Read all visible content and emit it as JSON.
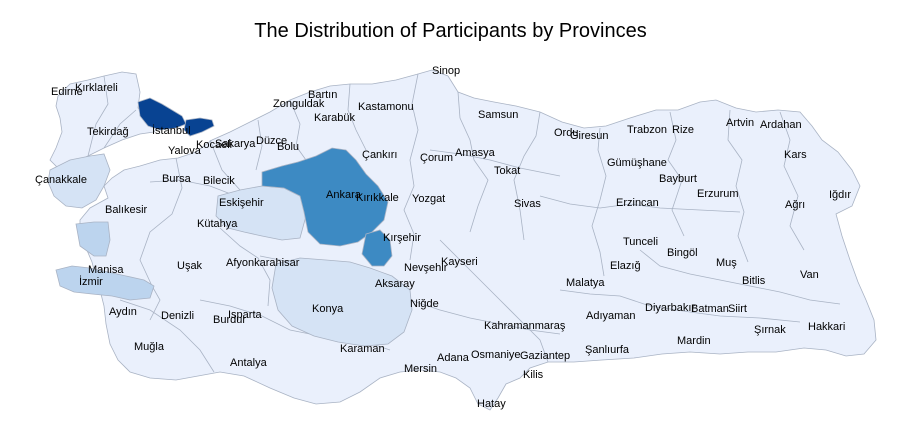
{
  "title": "The Distribution of Participants by Provinces",
  "colors": {
    "background": "#ffffff",
    "land_default": "#eaf0fc",
    "level_1": "#d5e3f5",
    "level_2": "#bcd4ee",
    "level_3": "#3d8ac3",
    "level_4": "#084392",
    "border": "#a9b3c4"
  },
  "provinces": [
    {
      "name": "Sinop",
      "shade": "default"
    },
    {
      "name": "Edirne",
      "shade": "default"
    },
    {
      "name": "Kırklareli",
      "shade": "default"
    },
    {
      "name": "Bartın",
      "shade": "default"
    },
    {
      "name": "Kastamonu",
      "shade": "default"
    },
    {
      "name": "Zonguldak",
      "shade": "default"
    },
    {
      "name": "Karabük",
      "shade": "default"
    },
    {
      "name": "Samsun",
      "shade": "default"
    },
    {
      "name": "Tekirdağ",
      "shade": "default"
    },
    {
      "name": "İstanbul",
      "shade": "level_4"
    },
    {
      "name": "Kocaeli",
      "shade": "level_4"
    },
    {
      "name": "Sakarya",
      "shade": "default"
    },
    {
      "name": "Düzce",
      "shade": "default"
    },
    {
      "name": "Bolu",
      "shade": "default"
    },
    {
      "name": "Ordu",
      "shade": "default"
    },
    {
      "name": "Giresun",
      "shade": "default"
    },
    {
      "name": "Trabzon",
      "shade": "default"
    },
    {
      "name": "Rize",
      "shade": "default"
    },
    {
      "name": "Artvin",
      "shade": "default"
    },
    {
      "name": "Ardahan",
      "shade": "default"
    },
    {
      "name": "Yalova",
      "shade": "default"
    },
    {
      "name": "Çankırı",
      "shade": "default"
    },
    {
      "name": "Çorum",
      "shade": "default"
    },
    {
      "name": "Amasya",
      "shade": "default"
    },
    {
      "name": "Gümüşhane",
      "shade": "default"
    },
    {
      "name": "Kars",
      "shade": "default"
    },
    {
      "name": "Çanakkale",
      "shade": "level_1"
    },
    {
      "name": "Bursa",
      "shade": "default"
    },
    {
      "name": "Bilecik",
      "shade": "default"
    },
    {
      "name": "Ankara",
      "shade": "level_3"
    },
    {
      "name": "Kırıkkale",
      "shade": "default"
    },
    {
      "name": "Tokat",
      "shade": "default"
    },
    {
      "name": "Bayburt",
      "shade": "default"
    },
    {
      "name": "Iğdır",
      "shade": "default"
    },
    {
      "name": "Eskişehir",
      "shade": "level_1"
    },
    {
      "name": "Erzurum",
      "shade": "default"
    },
    {
      "name": "Balıkesir",
      "shade": "default"
    },
    {
      "name": "Yozgat",
      "shade": "default"
    },
    {
      "name": "Sivas",
      "shade": "default"
    },
    {
      "name": "Erzincan",
      "shade": "default"
    },
    {
      "name": "Ağrı",
      "shade": "default"
    },
    {
      "name": "Kütahya",
      "shade": "default"
    },
    {
      "name": "Kırşehir",
      "shade": "level_3"
    },
    {
      "name": "Tunceli",
      "shade": "default"
    },
    {
      "name": "Bingöl",
      "shade": "default"
    },
    {
      "name": "Afyonkarahisar",
      "shade": "default"
    },
    {
      "name": "Uşak",
      "shade": "default"
    },
    {
      "name": "Kayseri",
      "shade": "default"
    },
    {
      "name": "Nevşehir",
      "shade": "default"
    },
    {
      "name": "Elazığ",
      "shade": "default"
    },
    {
      "name": "Muş",
      "shade": "default"
    },
    {
      "name": "Manisa",
      "shade": "level_2"
    },
    {
      "name": "Van",
      "shade": "default"
    },
    {
      "name": "İzmir",
      "shade": "level_2"
    },
    {
      "name": "Aksaray",
      "shade": "default"
    },
    {
      "name": "Bitlis",
      "shade": "default"
    },
    {
      "name": "Malatya",
      "shade": "default"
    },
    {
      "name": "Niğde",
      "shade": "default"
    },
    {
      "name": "Aydın",
      "shade": "default"
    },
    {
      "name": "Konya",
      "shade": "level_1"
    },
    {
      "name": "Diyarbakır",
      "shade": "default"
    },
    {
      "name": "Batman",
      "shade": "default"
    },
    {
      "name": "Siirt",
      "shade": "default"
    },
    {
      "name": "Denizli",
      "shade": "default"
    },
    {
      "name": "Isparta",
      "shade": "default"
    },
    {
      "name": "Burdur",
      "shade": "default"
    },
    {
      "name": "Adıyaman",
      "shade": "default"
    },
    {
      "name": "Şırnak",
      "shade": "default"
    },
    {
      "name": "Hakkari",
      "shade": "default"
    },
    {
      "name": "Kahramanmaraş",
      "shade": "default"
    },
    {
      "name": "Muğla",
      "shade": "default"
    },
    {
      "name": "Karaman",
      "shade": "default"
    },
    {
      "name": "Mardin",
      "shade": "default"
    },
    {
      "name": "Osmaniye",
      "shade": "default"
    },
    {
      "name": "Gaziantep",
      "shade": "default"
    },
    {
      "name": "Şanlıurfa",
      "shade": "default"
    },
    {
      "name": "Adana",
      "shade": "default"
    },
    {
      "name": "Antalya",
      "shade": "default"
    },
    {
      "name": "Mersin",
      "shade": "default"
    },
    {
      "name": "Kilis",
      "shade": "default"
    },
    {
      "name": "Hatay",
      "shade": "default"
    }
  ]
}
